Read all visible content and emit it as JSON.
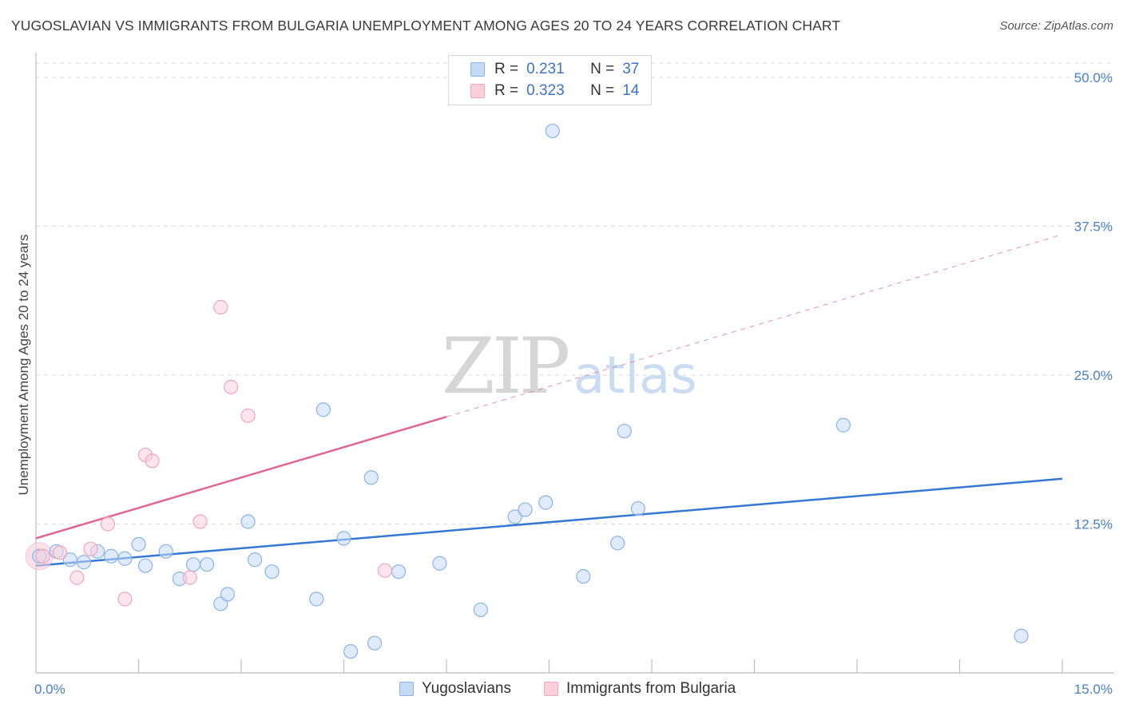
{
  "title": "YUGOSLAVIAN VS IMMIGRANTS FROM BULGARIA UNEMPLOYMENT AMONG AGES 20 TO 24 YEARS CORRELATION CHART",
  "source": "Source: ZipAtlas.com",
  "watermark": {
    "zip": "ZIP",
    "atlas": "atlas"
  },
  "legend": {
    "rows": [
      {
        "r_label": "R =",
        "r_value": "0.231",
        "n_label": "N =",
        "n_value": "37"
      },
      {
        "r_label": "R =",
        "r_value": "0.323",
        "n_label": "N =",
        "n_value": "14"
      }
    ]
  },
  "chart_data": {
    "type": "scatter",
    "title": "YUGOSLAVIAN VS IMMIGRANTS FROM BULGARIA UNEMPLOYMENT AMONG AGES 20 TO 24 YEARS CORRELATION CHART",
    "xlabel": "",
    "ylabel": "Unemployment Among Ages 20 to 24 years",
    "xlim": [
      0,
      15
    ],
    "ylim": [
      0,
      51.2
    ],
    "x_tick_labels": [
      {
        "value": 0,
        "label": "0.0%"
      },
      {
        "value": 15,
        "label": "15.0%"
      }
    ],
    "y_tick_labels": [
      {
        "value": 12.5,
        "label": "12.5%"
      },
      {
        "value": 25.0,
        "label": "25.0%"
      },
      {
        "value": 37.5,
        "label": "37.5%"
      },
      {
        "value": 50.0,
        "label": "50.0%"
      }
    ],
    "x_minor_ticks": [
      1.5,
      3.0,
      4.5,
      6.0,
      7.5,
      9.0,
      10.5,
      12.0,
      13.5,
      15.0
    ],
    "grid": true,
    "legend_position": "top-center",
    "series": [
      {
        "name": "Yugoslavians",
        "color": "#8ab4e8",
        "fill": "#c5daf5",
        "line_color": "#3478d4",
        "r": 0.231,
        "n": 37,
        "trend": {
          "x0": 0,
          "y0": 9.0,
          "x1": 15,
          "y1": 16.3,
          "dashed_from": null
        },
        "points": [
          [
            0.05,
            9.8
          ],
          [
            0.3,
            10.2
          ],
          [
            0.5,
            9.5
          ],
          [
            0.7,
            9.3
          ],
          [
            0.9,
            10.2
          ],
          [
            1.1,
            9.8
          ],
          [
            1.3,
            9.6
          ],
          [
            1.5,
            10.8
          ],
          [
            1.6,
            9.0
          ],
          [
            1.9,
            10.2
          ],
          [
            2.1,
            7.9
          ],
          [
            2.3,
            9.1
          ],
          [
            2.5,
            9.1
          ],
          [
            2.7,
            5.8
          ],
          [
            2.8,
            6.6
          ],
          [
            3.1,
            12.7
          ],
          [
            3.2,
            9.5
          ],
          [
            3.45,
            8.5
          ],
          [
            4.1,
            6.2
          ],
          [
            4.2,
            22.1
          ],
          [
            4.5,
            11.3
          ],
          [
            4.6,
            1.8
          ],
          [
            4.9,
            16.4
          ],
          [
            4.95,
            2.5
          ],
          [
            5.3,
            8.5
          ],
          [
            5.9,
            9.2
          ],
          [
            6.5,
            5.3
          ],
          [
            7.0,
            13.1
          ],
          [
            7.15,
            13.7
          ],
          [
            7.45,
            14.3
          ],
          [
            7.55,
            45.5
          ],
          [
            8.0,
            8.1
          ],
          [
            8.5,
            10.9
          ],
          [
            8.6,
            20.3
          ],
          [
            8.8,
            13.8
          ],
          [
            11.8,
            20.8
          ],
          [
            14.4,
            3.1
          ]
        ]
      },
      {
        "name": "Immigrants from Bulgaria",
        "color": "#f2a5bd",
        "fill": "#f9cfdc",
        "line_color": "#e0678f",
        "r": 0.323,
        "n": 14,
        "trend": {
          "x0": 0,
          "y0": 11.3,
          "x1": 15,
          "y1": 36.8,
          "solid_until": 6.0
        },
        "points": [
          [
            0.1,
            9.8
          ],
          [
            0.35,
            10.1
          ],
          [
            0.6,
            8.0
          ],
          [
            0.8,
            10.4
          ],
          [
            1.05,
            12.5
          ],
          [
            1.3,
            6.2
          ],
          [
            1.6,
            18.3
          ],
          [
            1.7,
            17.8
          ],
          [
            2.25,
            8.0
          ],
          [
            2.4,
            12.7
          ],
          [
            2.7,
            30.7
          ],
          [
            2.85,
            24.0
          ],
          [
            3.1,
            21.6
          ],
          [
            5.1,
            8.6
          ]
        ]
      }
    ]
  }
}
